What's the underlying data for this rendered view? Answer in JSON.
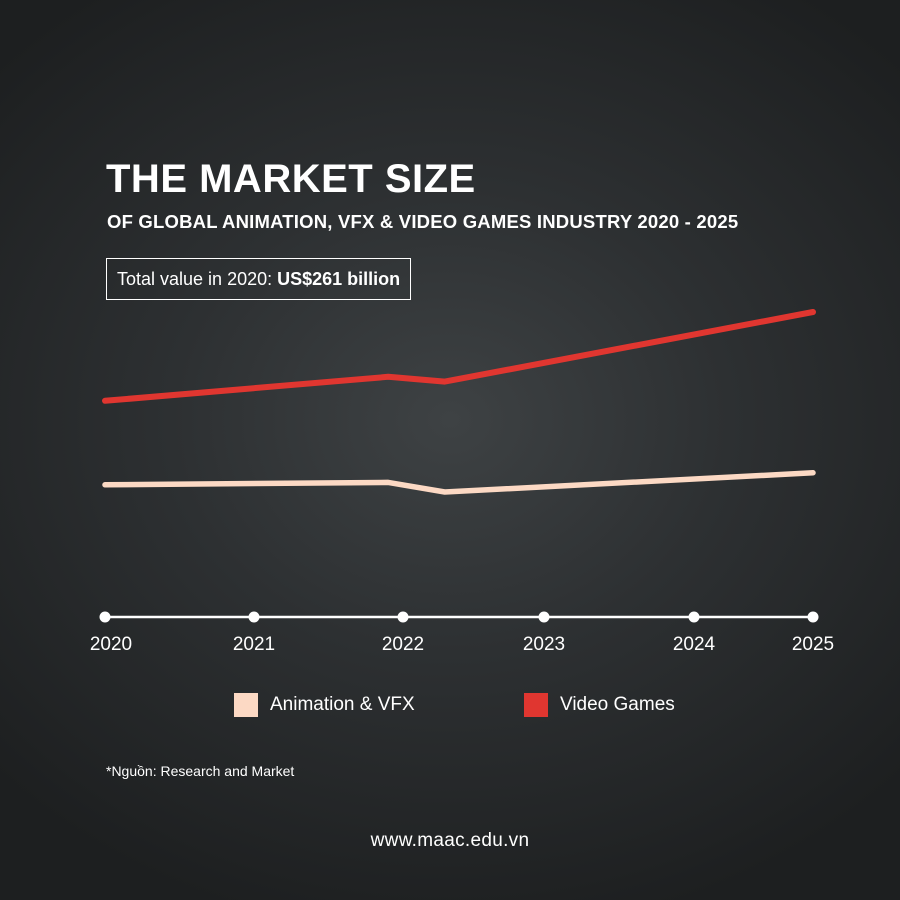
{
  "chart_data": {
    "type": "line",
    "title": "THE MARKET SIZE",
    "subtitle": "OF GLOBAL ANIMATION, VFX & VIDEO GAMES INDUSTRY 2020 - 2025",
    "x_ticks": [
      "2020",
      "2021",
      "2022",
      "2023",
      "2024",
      "2025"
    ],
    "x_range": [
      2020,
      2025
    ],
    "y_range": [
      0,
      1
    ],
    "y_axis_shown": false,
    "grid": false,
    "legend_position": "bottom",
    "series": [
      {
        "name": "Animation & VFX",
        "color": "#fcd9c4",
        "points": [
          [
            2020,
            0.23
          ],
          [
            2022,
            0.24
          ],
          [
            2022.4,
            0.2
          ],
          [
            2025,
            0.28
          ]
        ]
      },
      {
        "name": "Video Games",
        "color": "#e03630",
        "points": [
          [
            2020,
            0.58
          ],
          [
            2022,
            0.68
          ],
          [
            2022.4,
            0.66
          ],
          [
            2025,
            0.95
          ]
        ]
      }
    ]
  },
  "total_box": {
    "label": "Total value in 2020:",
    "value": "US$261 billion"
  },
  "source": "*Nguồn: Research and Market",
  "website": "www.maac.edu.vn"
}
